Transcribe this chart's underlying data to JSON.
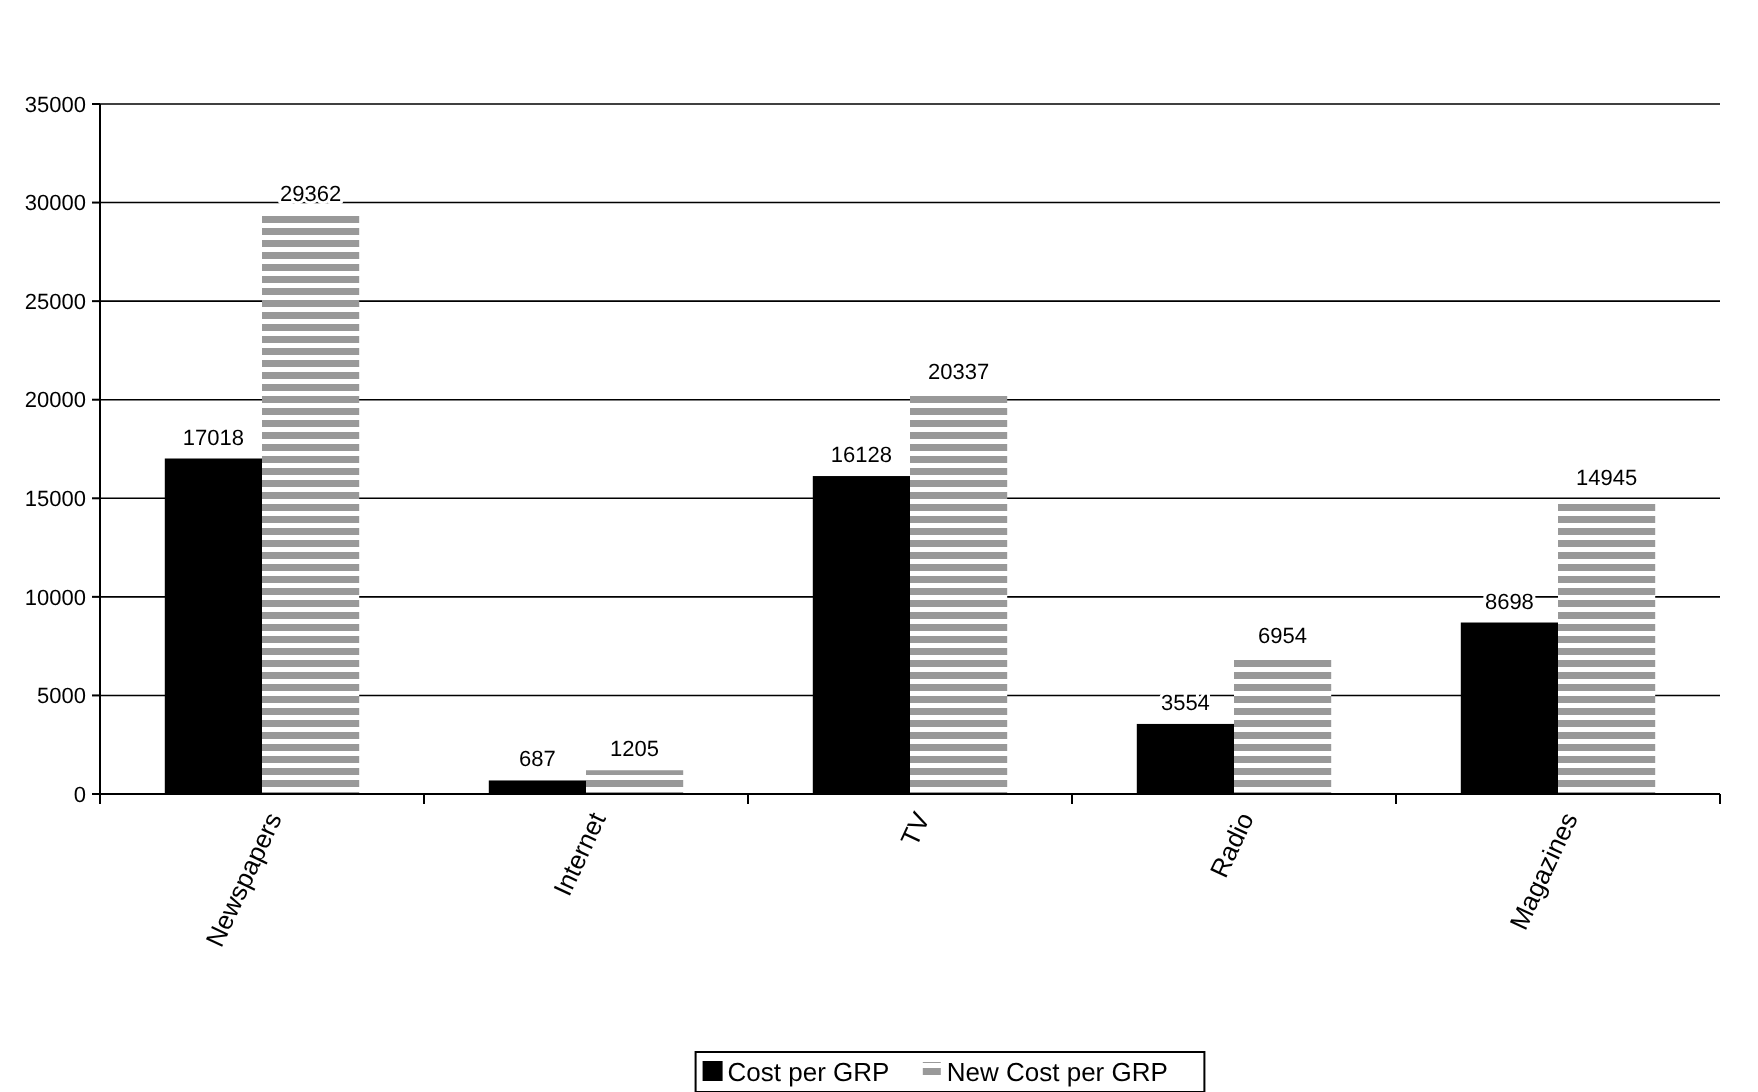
{
  "chart_data": {
    "type": "bar",
    "categories": [
      "Newspapers",
      "Internet",
      "TV",
      "Radio",
      "Magazines"
    ],
    "series": [
      {
        "name": "Cost per GRP",
        "color": "#000000",
        "values": [
          17018,
          687,
          16128,
          3554,
          8698
        ]
      },
      {
        "name": "New Cost per GRP",
        "color": "#999999",
        "values": [
          29362,
          1205,
          20337,
          6954,
          14945
        ]
      }
    ],
    "ylim": [
      0,
      35000
    ],
    "yticks": [
      0,
      5000,
      10000,
      15000,
      20000,
      25000,
      30000,
      35000
    ],
    "grid": "y",
    "data_labels": true,
    "legend": "bottom"
  }
}
